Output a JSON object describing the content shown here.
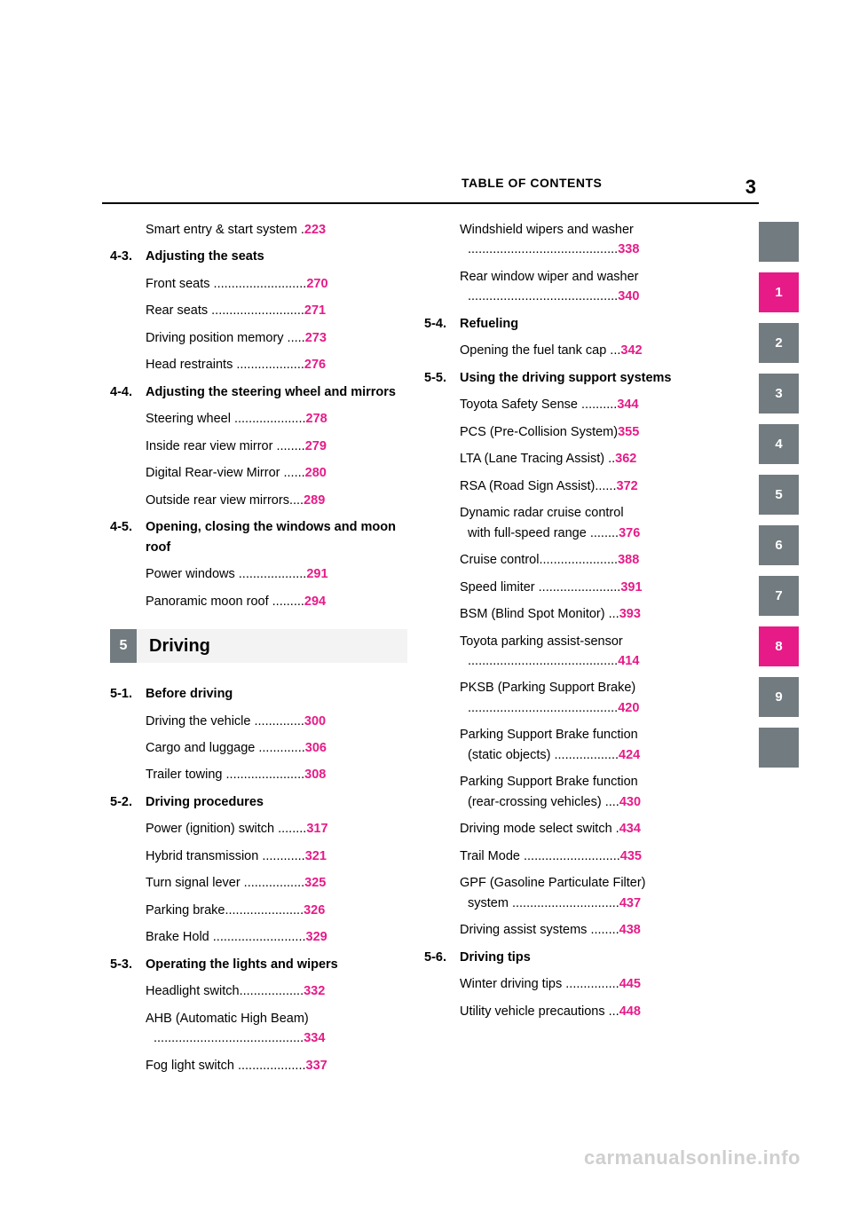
{
  "colors": {
    "page_accent": "#e61b88",
    "tab_gray": "#727b7f",
    "chapter_num_bg": "#727b7f",
    "chapter_title_bg": "#f3f3f3",
    "watermark": "#cfcfcf",
    "rule": "#000000"
  },
  "header": {
    "title": "TABLE OF CONTENTS",
    "page_number": "3"
  },
  "watermark": "carmanualsonline.info",
  "tabs": [
    {
      "label": "",
      "active": false
    },
    {
      "label": "1",
      "active": true
    },
    {
      "label": "2",
      "active": false
    },
    {
      "label": "3",
      "active": false
    },
    {
      "label": "4",
      "active": false
    },
    {
      "label": "5",
      "active": false
    },
    {
      "label": "6",
      "active": false
    },
    {
      "label": "7",
      "active": false
    },
    {
      "label": "8",
      "active": true
    },
    {
      "label": "9",
      "active": false
    },
    {
      "label": "",
      "active": false
    }
  ],
  "left_col": [
    {
      "type": "item",
      "text": "Smart entry & start system .",
      "page": "223"
    },
    {
      "type": "section",
      "num": "4-3.",
      "title": "Adjusting the seats"
    },
    {
      "type": "item",
      "text": "Front seats ..........................",
      "page": "270"
    },
    {
      "type": "item",
      "text": "Rear seats ..........................",
      "page": "271"
    },
    {
      "type": "item",
      "text": "Driving position memory .....",
      "page": "273"
    },
    {
      "type": "item",
      "text": "Head restraints ...................",
      "page": "276"
    },
    {
      "type": "section",
      "num": "4-4.",
      "title": "Adjusting the steering wheel and mirrors"
    },
    {
      "type": "item",
      "text": "Steering wheel ....................",
      "page": "278"
    },
    {
      "type": "item",
      "text": "Inside rear view mirror ........",
      "page": "279"
    },
    {
      "type": "item",
      "text": "Digital Rear-view Mirror ......",
      "page": "280"
    },
    {
      "type": "item",
      "text": "Outside rear view mirrors....",
      "page": "289"
    },
    {
      "type": "section",
      "num": "4-5.",
      "title": "Opening, closing the windows and moon roof"
    },
    {
      "type": "item",
      "text": "Power windows ...................",
      "page": "291"
    },
    {
      "type": "item",
      "text": "Panoramic moon roof .........",
      "page": "294"
    },
    {
      "type": "chapter",
      "num": "5",
      "title": "Driving"
    },
    {
      "type": "section",
      "num": "5-1.",
      "title": "Before driving"
    },
    {
      "type": "item",
      "text": "Driving the vehicle ..............",
      "page": "300"
    },
    {
      "type": "item",
      "text": "Cargo and luggage .............",
      "page": "306"
    },
    {
      "type": "item",
      "text": "Trailer towing ......................",
      "page": "308"
    },
    {
      "type": "section",
      "num": "5-2.",
      "title": "Driving procedures"
    },
    {
      "type": "item",
      "text": "Power (ignition) switch ........",
      "page": "317"
    },
    {
      "type": "item",
      "text": "Hybrid transmission ............",
      "page": "321"
    },
    {
      "type": "item",
      "text": "Turn signal lever .................",
      "page": "325"
    },
    {
      "type": "item",
      "text": "Parking brake......................",
      "page": "326"
    },
    {
      "type": "item",
      "text": "Brake Hold ..........................",
      "page": "329"
    },
    {
      "type": "section",
      "num": "5-3.",
      "title": "Operating the lights and wipers"
    },
    {
      "type": "item",
      "text": "Headlight switch..................",
      "page": "332"
    },
    {
      "type": "item2",
      "text1": "AHB (Automatic High Beam)",
      "text2": "..........................................",
      "page": "334"
    },
    {
      "type": "item",
      "text": "Fog light switch ...................",
      "page": "337"
    }
  ],
  "right_col": [
    {
      "type": "item2",
      "text1": "Windshield wipers and washer",
      "text2": "..........................................",
      "page": "338"
    },
    {
      "type": "item2",
      "text1": "Rear window wiper and washer",
      "text2": "..........................................",
      "page": "340"
    },
    {
      "type": "section",
      "num": "5-4.",
      "title": "Refueling"
    },
    {
      "type": "item",
      "text": "Opening the fuel tank cap ...",
      "page": "342"
    },
    {
      "type": "section",
      "num": "5-5.",
      "title": "Using the driving support systems"
    },
    {
      "type": "item",
      "text": "Toyota Safety Sense ..........",
      "page": "344"
    },
    {
      "type": "item",
      "text": "PCS (Pre-Collision System)",
      "page": "355"
    },
    {
      "type": "item",
      "text": "LTA (Lane Tracing Assist) ..",
      "page": "362"
    },
    {
      "type": "item",
      "text": "RSA (Road Sign Assist)......",
      "page": "372"
    },
    {
      "type": "item2",
      "text1": "Dynamic radar cruise control",
      "text2": "with full-speed range ........",
      "page": "376"
    },
    {
      "type": "item",
      "text": "Cruise control......................",
      "page": "388"
    },
    {
      "type": "item",
      "text": "Speed limiter .......................",
      "page": "391"
    },
    {
      "type": "item",
      "text": "BSM (Blind Spot Monitor) ...",
      "page": "393"
    },
    {
      "type": "item2",
      "text1": "Toyota parking assist-sensor",
      "text2": "..........................................",
      "page": "414"
    },
    {
      "type": "item2",
      "text1": "PKSB (Parking Support Brake)",
      "text2": "..........................................",
      "page": "420"
    },
    {
      "type": "item2",
      "text1": "Parking Support Brake function",
      "text2": "(static objects) ..................",
      "page": "424"
    },
    {
      "type": "item2",
      "text1": "Parking Support Brake function",
      "text2": "(rear-crossing vehicles) ....",
      "page": "430"
    },
    {
      "type": "item",
      "text": "Driving mode select switch .",
      "page": "434"
    },
    {
      "type": "item",
      "text": "Trail Mode ...........................",
      "page": "435"
    },
    {
      "type": "item2",
      "text1": "GPF (Gasoline Particulate Filter)",
      "text2": "system ..............................",
      "page": "437"
    },
    {
      "type": "item",
      "text": "Driving assist systems ........",
      "page": "438"
    },
    {
      "type": "section",
      "num": "5-6.",
      "title": "Driving tips"
    },
    {
      "type": "item",
      "text": "Winter driving tips ...............",
      "page": "445"
    },
    {
      "type": "item",
      "text": "Utility vehicle precautions ...",
      "page": "448"
    }
  ]
}
